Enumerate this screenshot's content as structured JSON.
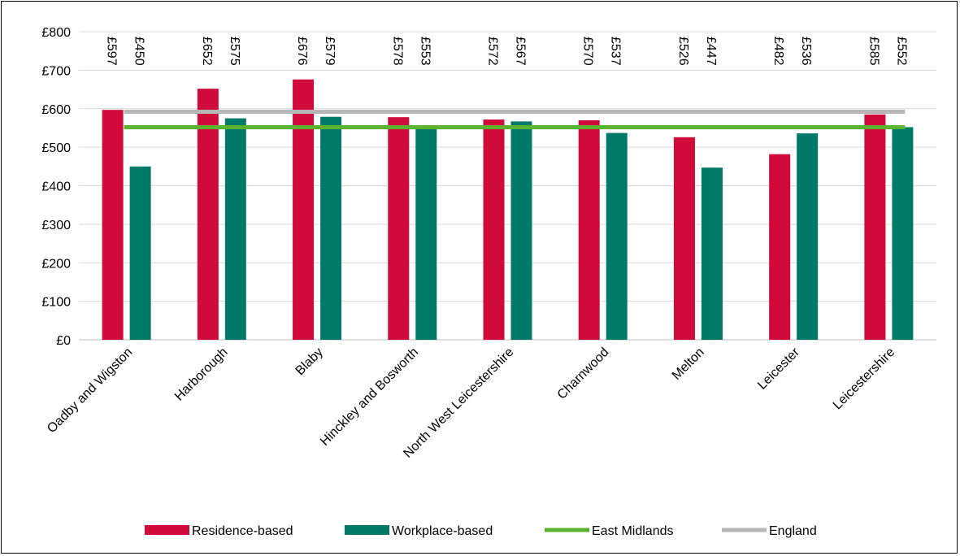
{
  "chart_data": {
    "type": "bar",
    "categories": [
      "Oadby and Wigston",
      "Harborough",
      "Blaby",
      "Hinckley and Bosworth",
      "North West Leicestershire",
      "Charnwood",
      "Melton",
      "Leicester",
      "Leicestershire"
    ],
    "series": [
      {
        "name": "Residence-based",
        "values": [
          597,
          652,
          676,
          578,
          572,
          570,
          526,
          482,
          585
        ],
        "color": "#D10A3C",
        "labels": [
          "£597",
          "£652",
          "£676",
          "£578",
          "£572",
          "£570",
          "£526",
          "£482",
          "£585"
        ]
      },
      {
        "name": "Workplace-based",
        "values": [
          450,
          575,
          579,
          553,
          567,
          537,
          447,
          536,
          552
        ],
        "color": "#007A68",
        "labels": [
          "£450",
          "£575",
          "£579",
          "£553",
          "£567",
          "£537",
          "£447",
          "£536",
          "£552"
        ]
      }
    ],
    "lines": [
      {
        "name": "East Midlands",
        "value": 552,
        "color": "#5BB330"
      },
      {
        "name": "England",
        "value": 592,
        "color": "#B7B7B7"
      }
    ],
    "ylim": [
      0,
      800
    ],
    "yticks": [
      0,
      100,
      200,
      300,
      400,
      500,
      600,
      700,
      800
    ],
    "ytick_labels": [
      "£0",
      "£100",
      "£200",
      "£300",
      "£400",
      "£500",
      "£600",
      "£700",
      "£800"
    ],
    "grid": true,
    "legend_position": "bottom"
  }
}
